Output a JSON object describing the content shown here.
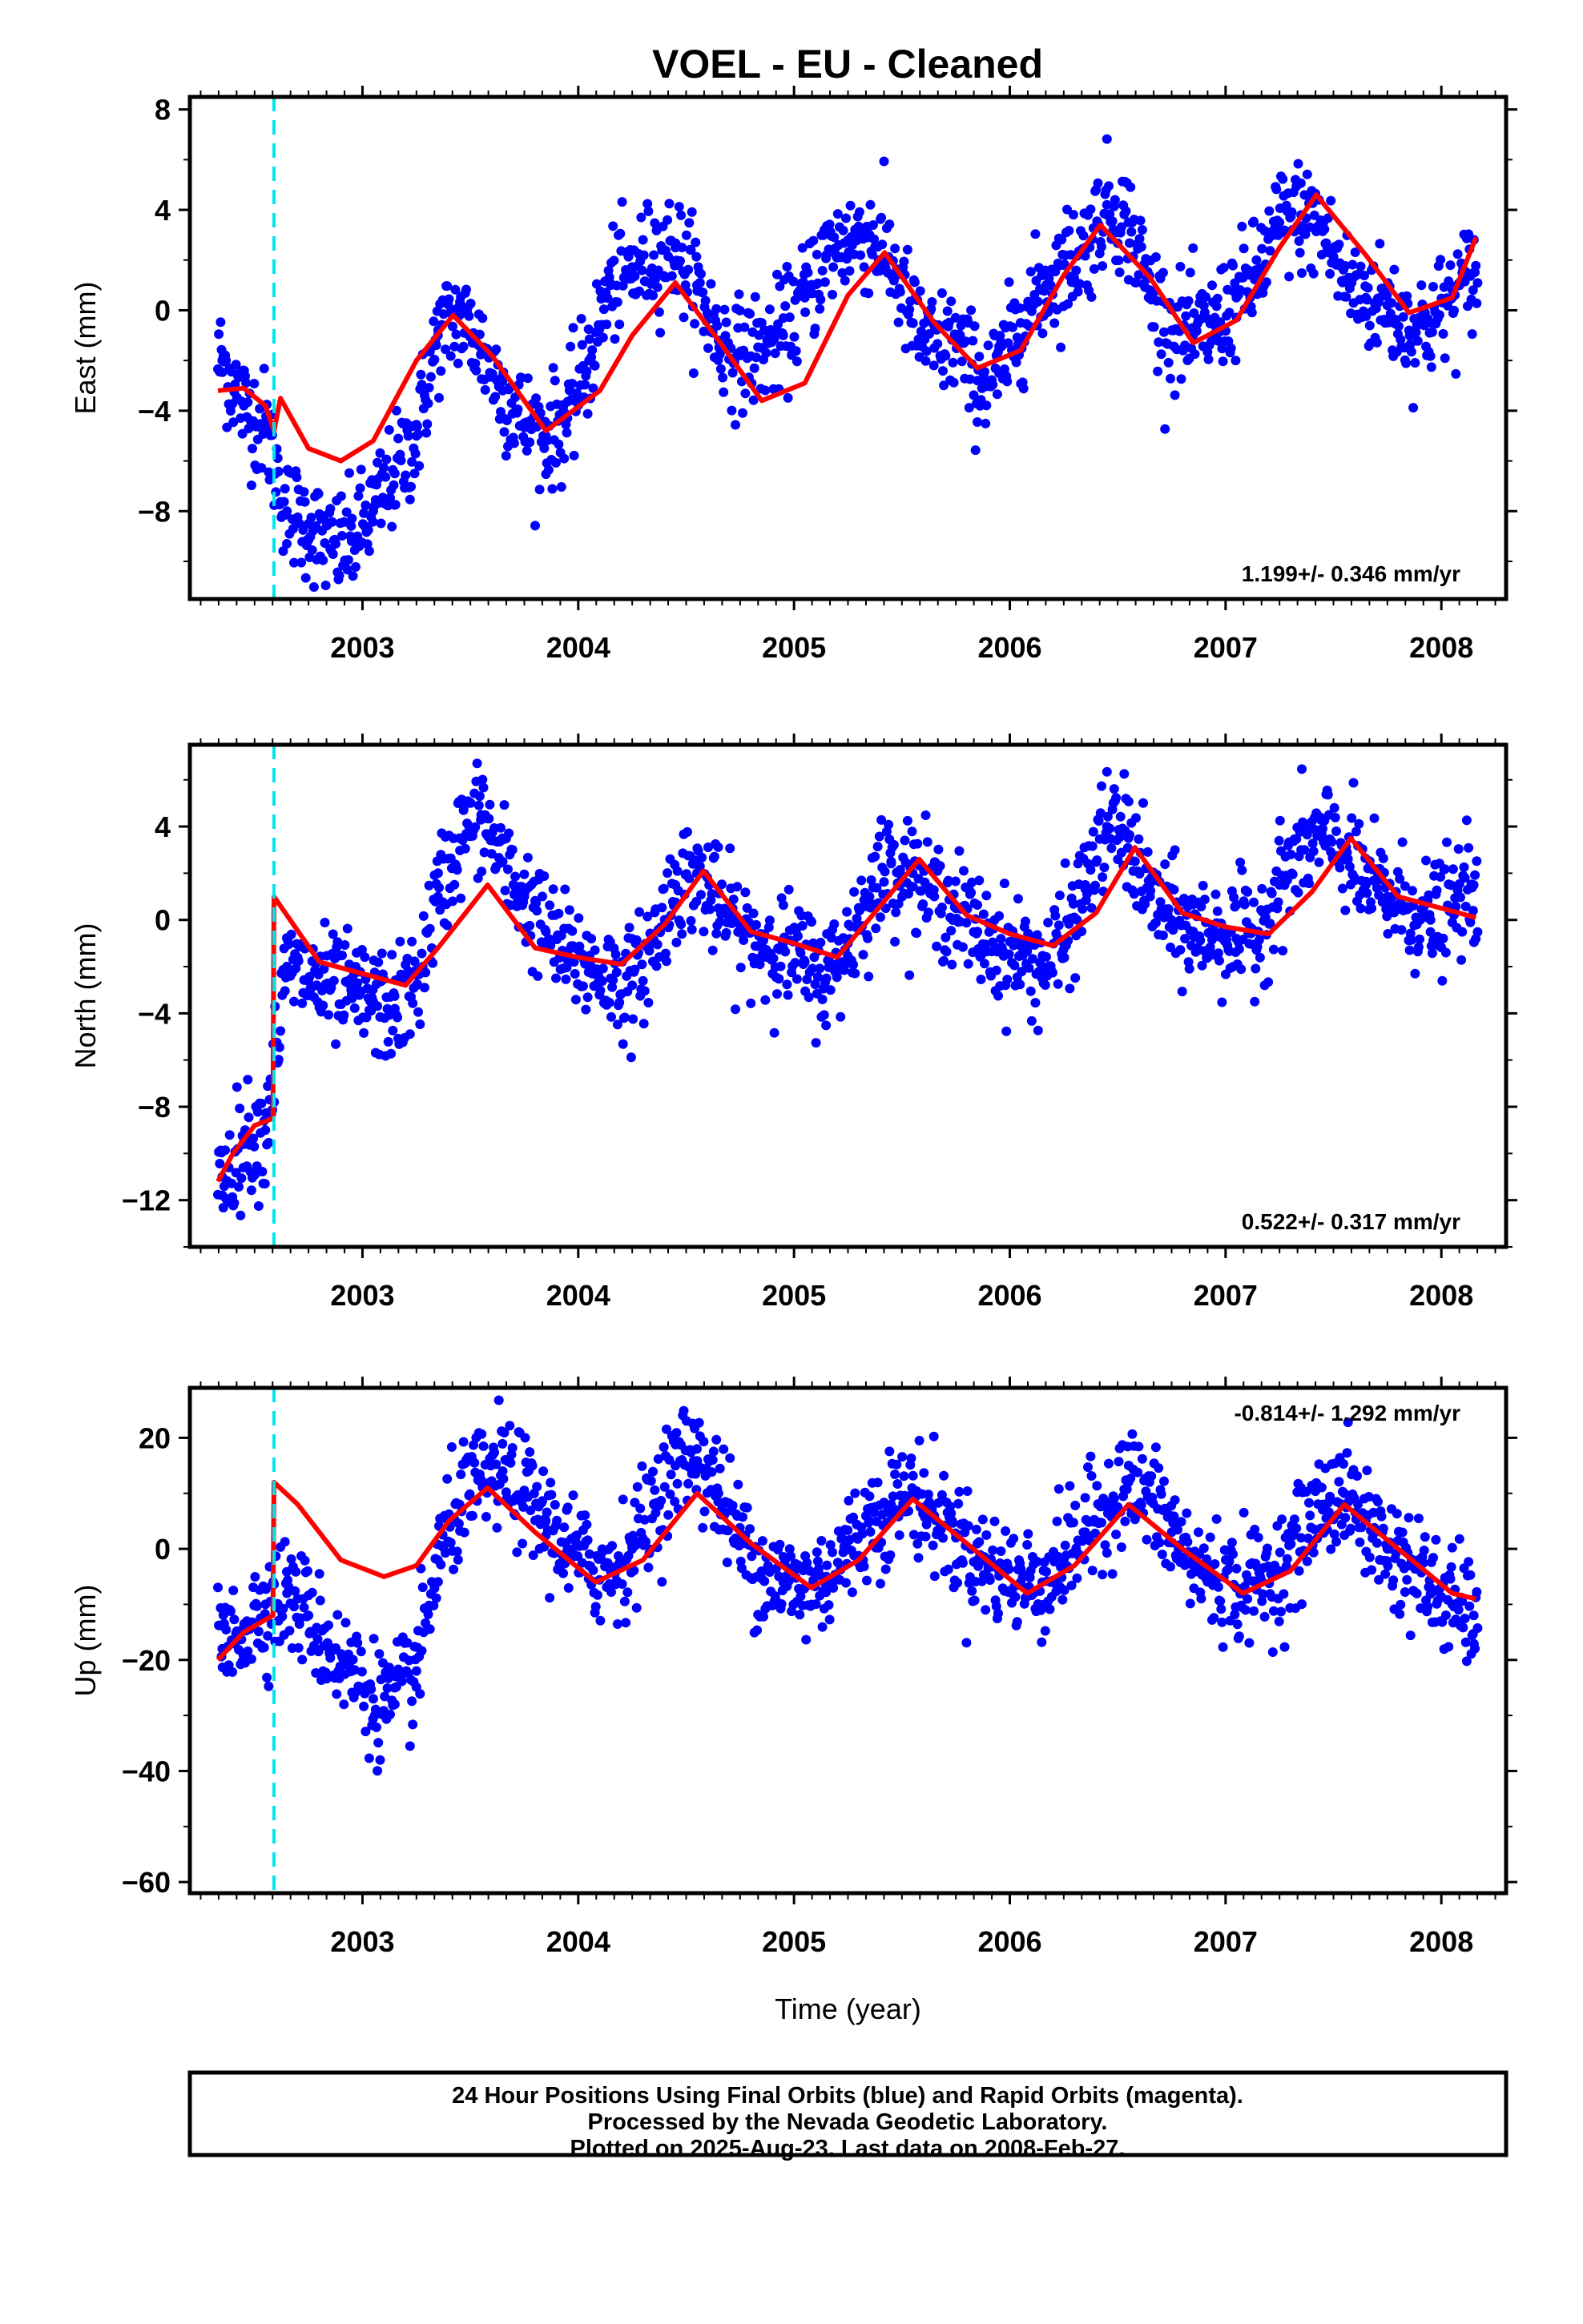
{
  "chart_title": "VOEL  - EU - Cleaned",
  "colors": {
    "final_orbits": "#0000ff",
    "model_fit": "#ff0000",
    "event_line": "#00e5ee",
    "frame": "#000000"
  },
  "chart_data": [
    {
      "type": "scatter",
      "ylabel": "East (mm)",
      "xlabel": "",
      "xlim": [
        2002.2,
        2008.3
      ],
      "ylim": [
        -11.5,
        8.5
      ],
      "yticks": [
        -8,
        -4,
        0,
        4,
        8
      ],
      "xticks": [
        2003,
        2004,
        2005,
        2006,
        2007,
        2008
      ],
      "rate_label": "1.199+/- 0.346 mm/yr",
      "event_x": 2002.59,
      "series": [
        {
          "role": "fit",
          "x": [
            2002.33,
            2002.45,
            2002.55,
            2002.59,
            2002.62,
            2002.75,
            2002.9,
            2003.05,
            2003.25,
            2003.42,
            2003.6,
            2003.85,
            2004.1,
            2004.25,
            2004.45,
            2004.65,
            2004.85,
            2005.05,
            2005.25,
            2005.42,
            2005.65,
            2005.85,
            2006.05,
            2006.25,
            2006.42,
            2006.65,
            2006.85,
            2007.05,
            2007.25,
            2007.42,
            2007.65,
            2007.85,
            2008.05,
            2008.16
          ],
          "y": [
            -3.2,
            -3.1,
            -3.8,
            -4.8,
            -3.5,
            -5.5,
            -6.0,
            -5.2,
            -2.0,
            -0.2,
            -1.8,
            -4.8,
            -3.2,
            -1.0,
            1.1,
            -1.2,
            -3.6,
            -2.9,
            0.6,
            2.3,
            -0.5,
            -2.3,
            -1.6,
            1.4,
            3.4,
            1.3,
            -1.3,
            -0.4,
            2.5,
            4.6,
            2.2,
            -0.1,
            0.5,
            2.9
          ]
        },
        {
          "role": "observations",
          "x": [
            2002.35,
            2002.45,
            2002.55,
            2002.65,
            2002.75,
            2002.85,
            2002.95,
            2003.05,
            2003.15,
            2003.25,
            2003.35,
            2003.45,
            2003.55,
            2003.65,
            2003.75,
            2003.85,
            2003.95,
            2004.05,
            2004.15,
            2004.25,
            2004.35,
            2004.45,
            2004.55,
            2004.65,
            2004.75,
            2004.85,
            2004.95,
            2005.05,
            2005.15,
            2005.25,
            2005.35,
            2005.45,
            2005.55,
            2005.65,
            2005.75,
            2005.85,
            2005.95,
            2006.05,
            2006.15,
            2006.25,
            2006.35,
            2006.45,
            2006.55,
            2006.65,
            2006.75,
            2006.85,
            2006.95,
            2007.05,
            2007.15,
            2007.25,
            2007.35,
            2007.45,
            2007.55,
            2007.65,
            2007.75,
            2007.85,
            2007.95,
            2008.05,
            2008.15
          ],
          "y": [
            -2.0,
            -3.8,
            -4.6,
            -8.0,
            -8.5,
            -9.5,
            -9.2,
            -8.0,
            -6.5,
            -5.0,
            -1.0,
            -0.2,
            -1.5,
            -3.2,
            -4.5,
            -5.0,
            -4.3,
            -2.0,
            1.0,
            1.5,
            2.2,
            2.5,
            1.0,
            -1.2,
            -1.8,
            -1.5,
            -1.0,
            0.5,
            2.2,
            2.8,
            3.0,
            2.0,
            -0.5,
            -1.5,
            -1.2,
            -2.8,
            -2.5,
            -0.5,
            0.8,
            1.8,
            2.5,
            4.2,
            3.5,
            0.8,
            -0.8,
            -1.0,
            -0.6,
            0.5,
            1.5,
            3.5,
            3.8,
            3.2,
            1.2,
            0.5,
            0.2,
            -0.8,
            -0.5,
            0.5,
            1.5
          ]
        }
      ]
    },
    {
      "type": "scatter",
      "ylabel": "North (mm)",
      "xlabel": "",
      "xlim": [
        2002.2,
        2008.3
      ],
      "ylim": [
        -14,
        7.5
      ],
      "yticks": [
        -12,
        -8,
        -4,
        0,
        4
      ],
      "xticks": [
        2003,
        2004,
        2005,
        2006,
        2007,
        2008
      ],
      "rate_label": "0.522+/- 0.317 mm/yr",
      "event_x": 2002.59,
      "series": [
        {
          "role": "fit",
          "x": [
            2002.33,
            2002.4,
            2002.5,
            2002.585,
            2002.59,
            2002.65,
            2002.8,
            2003.0,
            2003.2,
            2003.35,
            2003.58,
            2003.8,
            2004.0,
            2004.2,
            2004.4,
            2004.58,
            2004.8,
            2005.0,
            2005.2,
            2005.4,
            2005.58,
            2005.8,
            2006.0,
            2006.2,
            2006.4,
            2006.58,
            2006.8,
            2007.0,
            2007.2,
            2007.4,
            2007.58,
            2007.8,
            2008.0,
            2008.16
          ],
          "y": [
            -11.2,
            -10.0,
            -8.8,
            -8.5,
            1.0,
            0.2,
            -1.8,
            -2.3,
            -2.8,
            -1.2,
            1.5,
            -1.2,
            -1.6,
            -1.9,
            -0.2,
            2.1,
            -0.5,
            -1.0,
            -1.6,
            0.6,
            2.6,
            0.2,
            -0.6,
            -1.1,
            0.3,
            3.1,
            0.3,
            -0.3,
            -0.6,
            1.2,
            3.5,
            1.0,
            0.5,
            0.1
          ]
        },
        {
          "role": "observations",
          "x": [
            2002.35,
            2002.45,
            2002.55,
            2002.65,
            2002.75,
            2002.85,
            2002.95,
            2003.05,
            2003.15,
            2003.25,
            2003.35,
            2003.45,
            2003.55,
            2003.65,
            2003.75,
            2003.85,
            2003.95,
            2004.05,
            2004.15,
            2004.25,
            2004.35,
            2004.45,
            2004.55,
            2004.65,
            2004.75,
            2004.85,
            2004.95,
            2005.05,
            2005.15,
            2005.25,
            2005.35,
            2005.45,
            2005.55,
            2005.65,
            2005.75,
            2005.85,
            2005.95,
            2006.05,
            2006.15,
            2006.25,
            2006.35,
            2006.45,
            2006.55,
            2006.65,
            2006.75,
            2006.85,
            2006.95,
            2007.05,
            2007.15,
            2007.25,
            2007.35,
            2007.45,
            2007.55,
            2007.65,
            2007.75,
            2007.85,
            2007.95,
            2008.05,
            2008.15
          ],
          "y": [
            -11.0,
            -9.5,
            -9.0,
            -2.0,
            -2.5,
            -3.0,
            -3.2,
            -3.5,
            -3.8,
            -2.8,
            1.0,
            3.5,
            4.5,
            2.5,
            1.0,
            -0.5,
            -1.5,
            -2.0,
            -2.5,
            -2.8,
            -1.0,
            1.5,
            2.0,
            0.5,
            -0.5,
            -1.0,
            -1.2,
            -1.8,
            -2.5,
            -1.0,
            1.0,
            2.5,
            2.0,
            1.0,
            0.5,
            -0.5,
            -1.2,
            -1.5,
            -2.0,
            -1.0,
            1.5,
            4.0,
            3.5,
            1.0,
            0.0,
            -0.5,
            -0.5,
            -0.8,
            -0.5,
            1.5,
            3.0,
            3.5,
            3.0,
            1.5,
            1.0,
            0.5,
            0.0,
            0.5,
            1.5
          ]
        }
      ]
    },
    {
      "type": "scatter",
      "ylabel": "Up (mm)",
      "xlabel": "Time (year)",
      "xlim": [
        2002.2,
        2008.3
      ],
      "ylim": [
        -62,
        29
      ],
      "yticks": [
        -60,
        -40,
        -20,
        0,
        20
      ],
      "xticks": [
        2003,
        2004,
        2005,
        2006,
        2007,
        2008
      ],
      "rate_label": "-0.814+/- 1.292 mm/yr",
      "event_x": 2002.59,
      "series": [
        {
          "role": "fit",
          "x": [
            2002.33,
            2002.45,
            2002.585,
            2002.59,
            2002.7,
            2002.9,
            2003.1,
            2003.25,
            2003.4,
            2003.58,
            2003.8,
            2004.08,
            2004.3,
            2004.55,
            2004.8,
            2005.08,
            2005.3,
            2005.55,
            2005.8,
            2006.08,
            2006.3,
            2006.55,
            2006.8,
            2007.08,
            2007.3,
            2007.55,
            2007.8,
            2008.05,
            2008.16
          ],
          "y": [
            -20,
            -15,
            -12,
            12,
            8,
            -2,
            -5,
            -3,
            5,
            11,
            3,
            -6,
            -2,
            10,
            1,
            -7,
            -2,
            9,
            1,
            -8,
            -3,
            8,
            0,
            -8,
            -4,
            8,
            0,
            -8,
            -9
          ]
        },
        {
          "role": "observations",
          "x": [
            2002.35,
            2002.45,
            2002.55,
            2002.65,
            2002.75,
            2002.85,
            2002.95,
            2003.05,
            2003.15,
            2003.25,
            2003.35,
            2003.45,
            2003.55,
            2003.65,
            2003.75,
            2003.85,
            2003.95,
            2004.05,
            2004.15,
            2004.25,
            2004.35,
            2004.45,
            2004.55,
            2004.65,
            2004.75,
            2004.85,
            2004.95,
            2005.05,
            2005.15,
            2005.25,
            2005.35,
            2005.45,
            2005.55,
            2005.65,
            2005.75,
            2005.85,
            2005.95,
            2006.05,
            2006.15,
            2006.25,
            2006.35,
            2006.45,
            2006.55,
            2006.65,
            2006.75,
            2006.85,
            2006.95,
            2007.05,
            2007.15,
            2007.25,
            2007.35,
            2007.45,
            2007.55,
            2007.65,
            2007.75,
            2007.85,
            2007.95,
            2008.05,
            2008.15
          ],
          "y": [
            -18,
            -14,
            -10,
            -8,
            -12,
            -18,
            -22,
            -27,
            -28,
            -22,
            -2,
            8,
            12,
            14,
            10,
            5,
            0,
            -3,
            -4,
            0,
            8,
            15,
            18,
            10,
            2,
            -4,
            -6,
            -7,
            -5,
            0,
            5,
            8,
            10,
            6,
            2,
            -2,
            -4,
            -6,
            -6,
            -2,
            3,
            8,
            12,
            9,
            3,
            -3,
            -5,
            -7,
            -6,
            -4,
            2,
            8,
            10,
            5,
            0,
            -3,
            -7,
            -10,
            -12
          ]
        }
      ]
    }
  ],
  "footer": {
    "line1": "24 Hour Positions Using Final Orbits (blue) and Rapid Orbits (magenta).",
    "line2": "Processed by the Nevada Geodetic Laboratory.",
    "line3": "Plotted on 2025-Aug-23. Last data on 2008-Feb-27."
  }
}
